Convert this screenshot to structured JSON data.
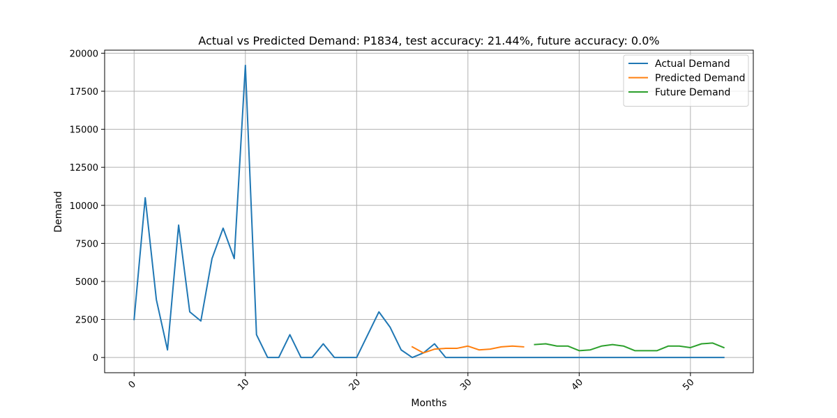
{
  "chart_data": {
    "type": "line",
    "title": "Actual vs Predicted Demand: P1834, test accuracy: 21.44%, future accuracy: 0.0%",
    "xlabel": "Months",
    "ylabel": "Demand",
    "xlim": [
      -2.65,
      55.65
    ],
    "ylim": [
      -1000,
      20200
    ],
    "xticks": [
      0,
      10,
      20,
      30,
      40,
      50
    ],
    "yticks": [
      0,
      2500,
      5000,
      7500,
      10000,
      12500,
      15000,
      17500,
      20000
    ],
    "xtick_rotation": 45,
    "grid": true,
    "legend_position": "top-right",
    "series": [
      {
        "name": "Actual Demand",
        "color": "#1f77b4",
        "x": [
          0,
          1,
          2,
          3,
          4,
          5,
          6,
          7,
          8,
          9,
          10,
          11,
          12,
          13,
          14,
          15,
          16,
          17,
          18,
          19,
          20,
          21,
          22,
          23,
          24,
          25,
          26,
          27,
          28,
          29,
          30,
          31,
          32,
          33,
          34,
          35,
          36,
          37,
          38,
          39,
          40,
          41,
          42,
          43,
          44,
          45,
          46,
          47,
          48,
          49,
          50,
          51,
          52,
          53
        ],
        "y": [
          2500,
          10500,
          3800,
          500,
          8700,
          3000,
          2400,
          6500,
          8500,
          6500,
          19200,
          1500,
          0,
          0,
          1500,
          0,
          0,
          900,
          0,
          0,
          0,
          1500,
          3000,
          2000,
          500,
          0,
          300,
          900,
          0,
          0,
          0,
          0,
          0,
          0,
          0,
          0,
          0,
          0,
          0,
          0,
          0,
          0,
          0,
          0,
          0,
          0,
          0,
          0,
          0,
          0,
          0,
          0,
          0,
          0
        ]
      },
      {
        "name": "Predicted Demand",
        "color": "#ff7f0e",
        "x": [
          25,
          26,
          27,
          28,
          29,
          30,
          31,
          32,
          33,
          34,
          35
        ],
        "y": [
          700,
          300,
          550,
          600,
          600,
          750,
          500,
          550,
          700,
          750,
          700
        ]
      },
      {
        "name": "Future Demand",
        "color": "#2ca02c",
        "x": [
          36,
          37,
          38,
          39,
          40,
          41,
          42,
          43,
          44,
          45,
          46,
          47,
          48,
          49,
          50,
          51,
          52,
          53
        ],
        "y": [
          850,
          900,
          750,
          750,
          450,
          500,
          750,
          850,
          750,
          450,
          450,
          450,
          750,
          750,
          650,
          900,
          950,
          650
        ]
      }
    ]
  }
}
